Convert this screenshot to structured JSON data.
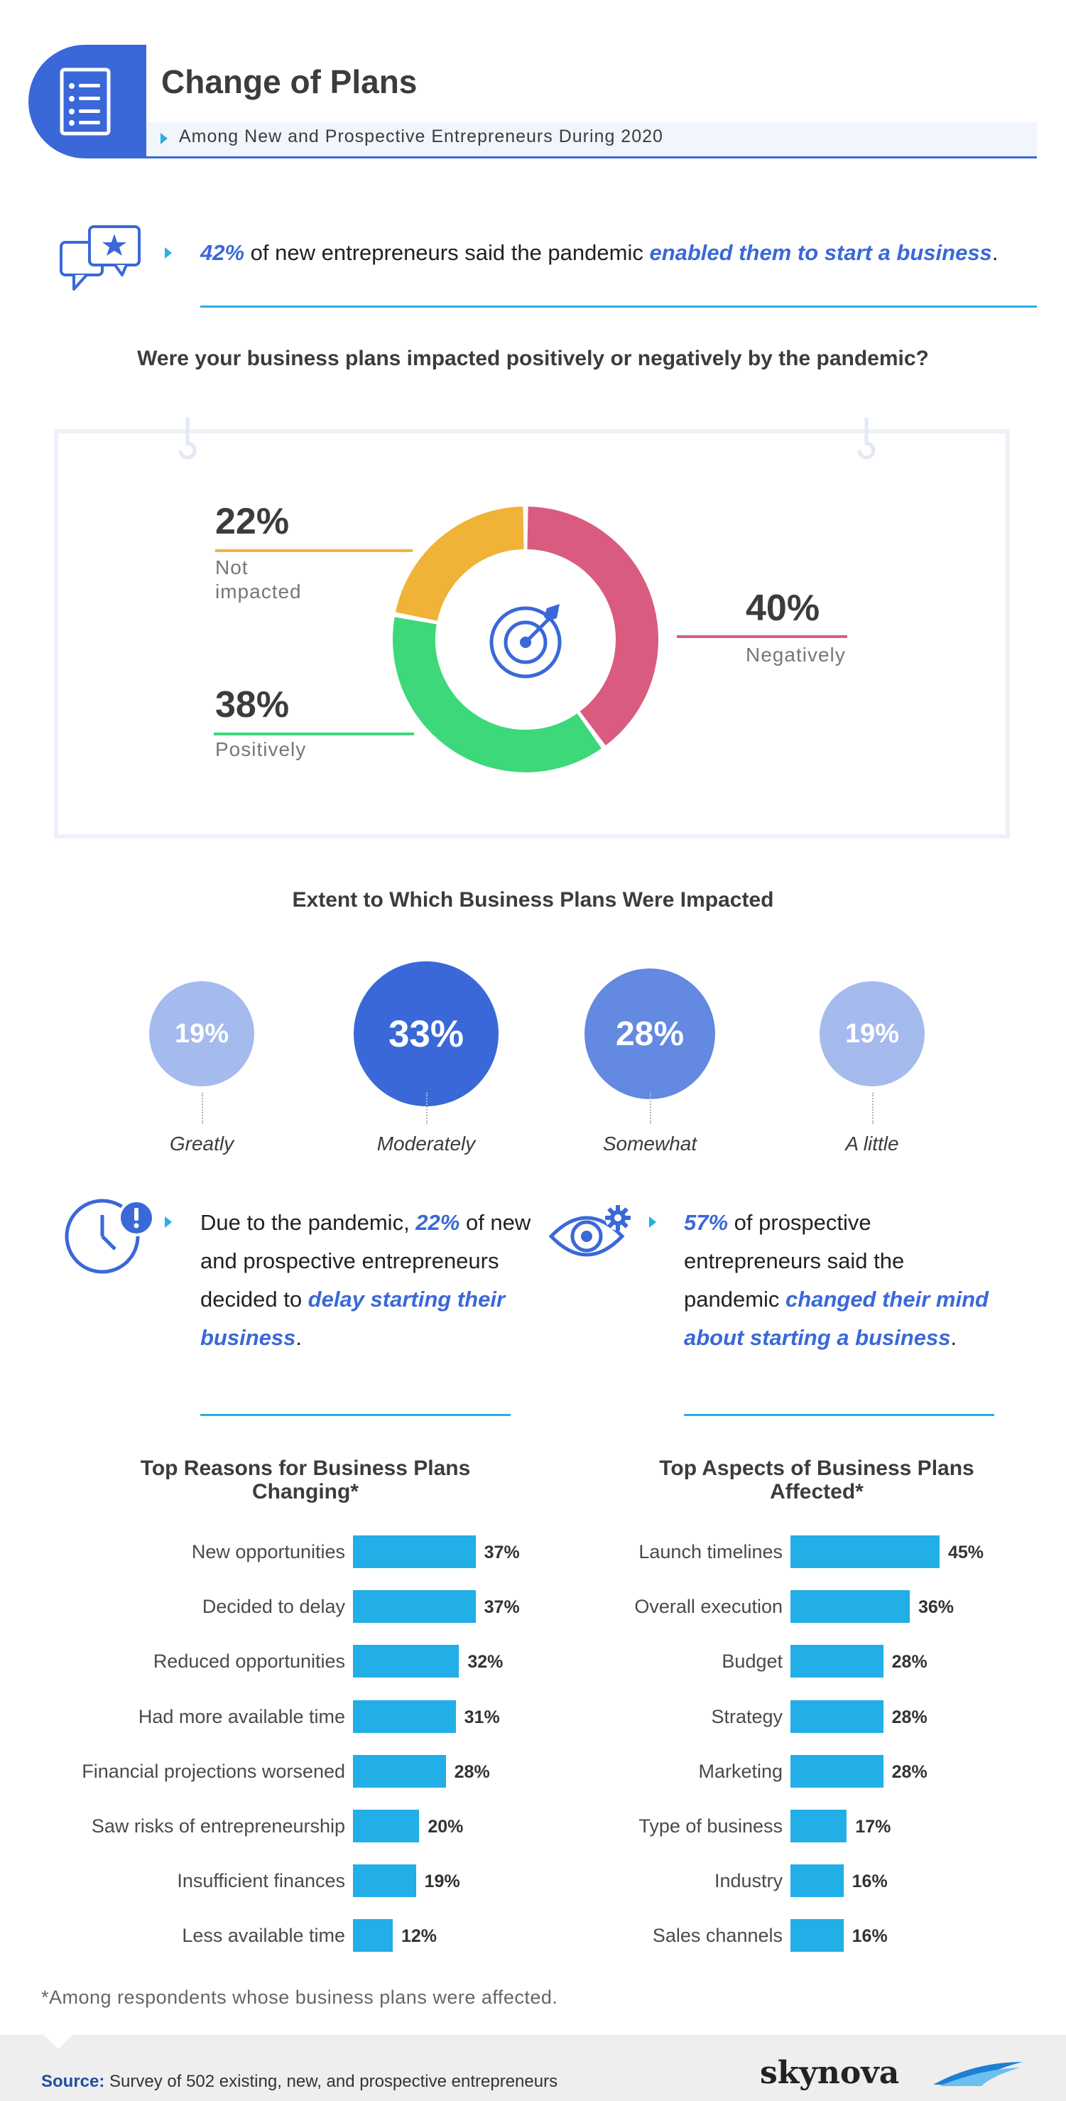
{
  "header": {
    "title": "Change of Plans",
    "subtitle": "Among New and Prospective Entrepreneurs During 2020"
  },
  "stat_start": {
    "pct": "42%",
    "text": " of new entrepreneurs said the pandemic ",
    "highlight": "enabled them to start a business",
    "end": "."
  },
  "chart_data": [
    {
      "type": "pie",
      "title": "Were your business plans impacted positively or negatively by the pandemic?",
      "categories": [
        "Negatively",
        "Positively",
        "Not impacted"
      ],
      "values": [
        40,
        38,
        22
      ],
      "labels": [
        "40%",
        "38%",
        "22%"
      ],
      "label_lines": [
        [
          "Negatively"
        ],
        [
          "Positively"
        ],
        [
          "Not",
          "impacted"
        ]
      ],
      "colors": [
        "#d95c80",
        "#3dd879",
        "#f0b237"
      ]
    },
    {
      "type": "bar",
      "title": "Extent to Which Business Plans Were Impacted",
      "categories": [
        "Greatly",
        "Moderately",
        "Somewhat",
        "A little"
      ],
      "values": [
        19,
        33,
        28,
        19
      ],
      "labels": [
        "19%",
        "33%",
        "28%",
        "19%"
      ]
    },
    {
      "type": "bar",
      "title": "Top Reasons for Business Plans Changing*",
      "categories": [
        "New opportunities",
        "Decided to delay",
        "Reduced opportunities",
        "Had more available time",
        "Financial projections worsened",
        "Saw risks of entrepreneurship",
        "Insufficient finances",
        "Less available time"
      ],
      "values": [
        37,
        37,
        32,
        31,
        28,
        20,
        19,
        12
      ],
      "labels": [
        "37%",
        "37%",
        "32%",
        "31%",
        "28%",
        "20%",
        "19%",
        "12%"
      ],
      "xlim": [
        0,
        45
      ]
    },
    {
      "type": "bar",
      "title": "Top Aspects of Business Plans Affected*",
      "categories": [
        "Launch timelines",
        "Overall execution",
        "Budget",
        "Strategy",
        "Marketing",
        "Type of business",
        "Industry",
        "Sales channels"
      ],
      "values": [
        45,
        36,
        28,
        28,
        28,
        17,
        16,
        16
      ],
      "labels": [
        "45%",
        "36%",
        "28%",
        "28%",
        "28%",
        "17%",
        "16%",
        "16%"
      ],
      "xlim": [
        0,
        45
      ]
    }
  ],
  "delay_stat": {
    "pre": "Due to the pandemic, ",
    "pct": "22%",
    "mid": " of new and prospective entrepreneurs decided to ",
    "highlight": "delay starting their business",
    "end": "."
  },
  "mind_stat": {
    "pct": "57%",
    "mid": " of prospective entrepreneurs said the pandemic ",
    "highlight": "changed their mind about starting a business",
    "end": "."
  },
  "footnote": "*Among respondents whose business plans were affected.",
  "source": {
    "label": "Source:",
    "text": " Survey of 502 existing, new, and prospective entrepreneurs"
  },
  "logo": "skynova",
  "colors": {
    "accent_blue": "#3a68d8",
    "cyan": "#22aee6"
  },
  "icons": [
    "document-list-icon",
    "chat-star-icon",
    "target-icon",
    "clock-alert-icon",
    "eye-gear-icon",
    "wave-logo-icon"
  ]
}
